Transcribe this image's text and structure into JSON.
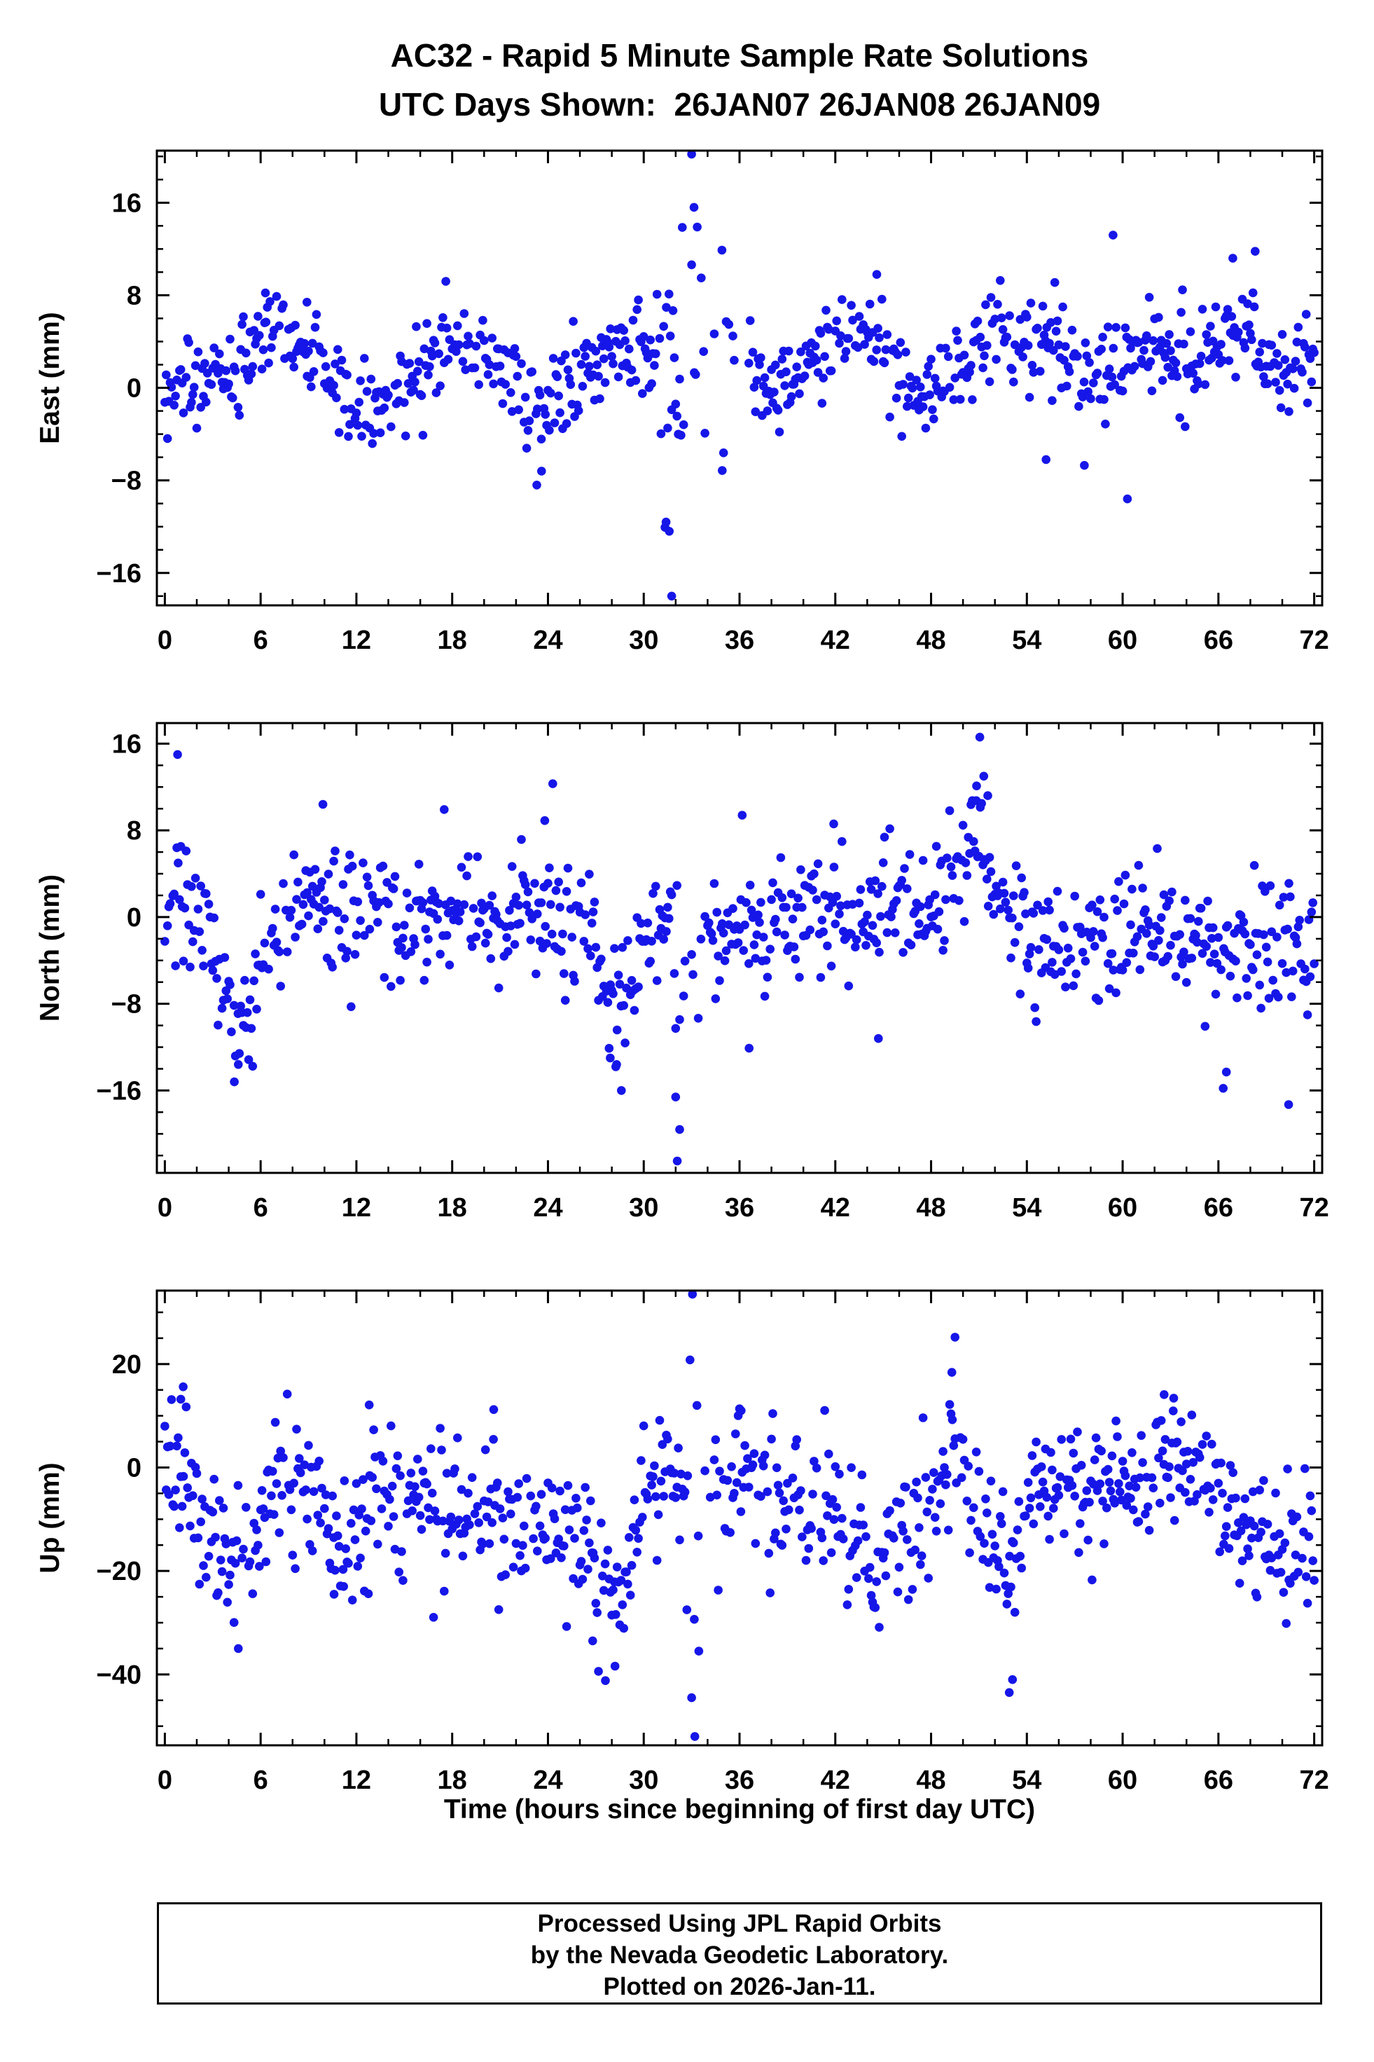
{
  "title": {
    "line1": "AC32 - Rapid 5 Minute Sample Rate Solutions",
    "line2": "UTC Days Shown:  26JAN07 26JAN08 26JAN09"
  },
  "footer": {
    "line1": "Processed Using JPL Rapid Orbits",
    "line2": "by the Nevada Geodetic Laboratory.",
    "line3": "Plotted on 2026-Jan-11."
  },
  "colors": {
    "point": "#1616e8",
    "frame": "#000000",
    "text": "#000000",
    "background": "#ffffff"
  },
  "chart_data": {
    "type": "scatter",
    "title": "AC32 - Rapid 5 Minute Sample Rate Solutions",
    "subtitle": "UTC Days Shown: 26JAN07 26JAN08 26JAN09",
    "sample_interval_hours": 0.0833333,
    "x_axis": {
      "label": "Time (hours since beginning of first day UTC)",
      "lim": [
        -0.5,
        72.5
      ],
      "major_ticks": [
        0,
        6,
        12,
        18,
        24,
        30,
        36,
        42,
        48,
        54,
        60,
        66,
        72
      ],
      "minor_step": 2
    },
    "panels": [
      {
        "name": "east",
        "ylabel": "East (mm)",
        "ylim": [
          -18.8,
          20.5
        ],
        "yticks": [
          -16,
          -8,
          0,
          8,
          16
        ],
        "yminor_step": 2,
        "seed": 20107,
        "noise_std": 1.9,
        "dropout": 0.1,
        "mean_curve": [
          [
            0,
            -0.3
          ],
          [
            2,
            0.2
          ],
          [
            4,
            1.6
          ],
          [
            6,
            3.6
          ],
          [
            7,
            4.4
          ],
          [
            9,
            2.6
          ],
          [
            11,
            0.2
          ],
          [
            12.5,
            -1.2
          ],
          [
            14,
            -1.6
          ],
          [
            15.5,
            0.6
          ],
          [
            17,
            3.2
          ],
          [
            18,
            3.6
          ],
          [
            19.5,
            3.0
          ],
          [
            21,
            1.5
          ],
          [
            22,
            0.2
          ],
          [
            23,
            -2.6
          ],
          [
            24,
            -2.0
          ],
          [
            25,
            0.2
          ],
          [
            26,
            1.6
          ],
          [
            27,
            2.6
          ],
          [
            28.5,
            3.6
          ],
          [
            29.5,
            4.2
          ],
          [
            30.5,
            3.6
          ],
          [
            31.5,
            1.5
          ],
          [
            33,
            3.5
          ],
          [
            34.5,
            4.5
          ],
          [
            36,
            3.0
          ],
          [
            37.5,
            1.0
          ],
          [
            39,
            0.6
          ],
          [
            40.5,
            2.2
          ],
          [
            42,
            5.0
          ],
          [
            43.5,
            5.2
          ],
          [
            45,
            2.8
          ],
          [
            46.5,
            0.2
          ],
          [
            48,
            -1.0
          ],
          [
            49.5,
            1.2
          ],
          [
            51,
            4.2
          ],
          [
            52.5,
            5.0
          ],
          [
            54,
            4.6
          ],
          [
            55.5,
            3.8
          ],
          [
            57,
            1.8
          ],
          [
            58.5,
            0.6
          ],
          [
            60,
            2.0
          ],
          [
            61.5,
            3.8
          ],
          [
            63,
            3.0
          ],
          [
            64.5,
            2.2
          ],
          [
            66,
            4.2
          ],
          [
            67.5,
            5.0
          ],
          [
            69,
            2.6
          ],
          [
            70.5,
            1.2
          ],
          [
            72,
            3.2
          ]
        ],
        "wild_regions": [
          [
            31.0,
            35.5,
            5.5
          ]
        ],
        "sparse_regions": [
          [
            32.5,
            36.5,
            0.72
          ]
        ],
        "outliers": [
          [
            33.0,
            20.2
          ],
          [
            33.15,
            15.6
          ],
          [
            33.35,
            13.9
          ],
          [
            33.6,
            9.5
          ],
          [
            34.9,
            11.9
          ],
          [
            31.4,
            -11.6
          ],
          [
            31.6,
            -12.4
          ],
          [
            31.75,
            -18.0
          ],
          [
            23.3,
            -8.4
          ],
          [
            23.6,
            -7.2
          ],
          [
            59.4,
            13.2
          ],
          [
            66.9,
            11.2
          ],
          [
            68.3,
            11.8
          ],
          [
            17.6,
            9.2
          ],
          [
            6.3,
            8.2
          ],
          [
            60.3,
            -9.6
          ],
          [
            57.6,
            -6.7
          ],
          [
            8.9,
            7.4
          ],
          [
            44.6,
            9.8
          ],
          [
            55.2,
            -6.2
          ]
        ]
      },
      {
        "name": "north",
        "ylabel": "North (mm)",
        "ylim": [
          -23.6,
          17.9
        ],
        "yticks": [
          -16,
          -8,
          0,
          8,
          16
        ],
        "yminor_step": 2,
        "seed": 20108,
        "noise_std": 2.9,
        "dropout": 0.1,
        "mean_curve": [
          [
            0,
            0.8
          ],
          [
            1,
            1.8
          ],
          [
            2,
            1.2
          ],
          [
            3,
            -1.5
          ],
          [
            4,
            -7.0
          ],
          [
            4.8,
            -9.5
          ],
          [
            5.5,
            -8.0
          ],
          [
            6.2,
            -4.0
          ],
          [
            7,
            -1.0
          ],
          [
            8,
            1.4
          ],
          [
            9,
            2.8
          ],
          [
            10,
            2.2
          ],
          [
            11,
            1.0
          ],
          [
            12,
            0.6
          ],
          [
            13,
            1.0
          ],
          [
            14,
            0.4
          ],
          [
            15,
            -0.6
          ],
          [
            16,
            -1.0
          ],
          [
            17,
            0.0
          ],
          [
            18,
            0.6
          ],
          [
            19,
            1.0
          ],
          [
            20,
            0.4
          ],
          [
            21,
            0.0
          ],
          [
            22,
            0.8
          ],
          [
            23,
            1.4
          ],
          [
            24,
            1.0
          ],
          [
            25,
            0.4
          ],
          [
            26,
            -0.2
          ],
          [
            27,
            -2.5
          ],
          [
            27.8,
            -6.5
          ],
          [
            28.5,
            -8.5
          ],
          [
            29.2,
            -5.5
          ],
          [
            30,
            -3.0
          ],
          [
            31,
            -2.0
          ],
          [
            32,
            -4.0
          ],
          [
            33,
            -2.0
          ],
          [
            34,
            -1.0
          ],
          [
            35,
            -1.8
          ],
          [
            36,
            -1.0
          ],
          [
            37,
            0.0
          ],
          [
            38,
            -0.6
          ],
          [
            39,
            -1.0
          ],
          [
            40,
            0.2
          ],
          [
            41,
            0.6
          ],
          [
            42,
            0.0
          ],
          [
            43,
            -1.0
          ],
          [
            44,
            0.4
          ],
          [
            45,
            1.0
          ],
          [
            46,
            0.0
          ],
          [
            47,
            -1.6
          ],
          [
            48,
            0.2
          ],
          [
            49,
            2.0
          ],
          [
            50,
            4.5
          ],
          [
            50.8,
            7.5
          ],
          [
            51.3,
            7.0
          ],
          [
            52,
            3.0
          ],
          [
            53,
            0.0
          ],
          [
            54,
            -1.0
          ],
          [
            55,
            -1.6
          ],
          [
            56,
            -1.0
          ],
          [
            57,
            -2.0
          ],
          [
            58,
            -2.6
          ],
          [
            59,
            -2.0
          ],
          [
            60,
            -1.0
          ],
          [
            61,
            -0.2
          ],
          [
            62,
            -0.8
          ],
          [
            63,
            -1.2
          ],
          [
            64,
            -2.0
          ],
          [
            65,
            -2.2
          ],
          [
            66,
            -3.0
          ],
          [
            67,
            -2.6
          ],
          [
            68,
            -3.0
          ],
          [
            69,
            -2.6
          ],
          [
            70,
            -2.2
          ],
          [
            71,
            -2.6
          ],
          [
            72,
            -2.0
          ]
        ],
        "wild_regions": [
          [
            31.6,
            33.6,
            5.0
          ]
        ],
        "sparse_regions": [
          [
            31.8,
            34.0,
            0.55
          ]
        ],
        "outliers": [
          [
            0.8,
            15.0
          ],
          [
            51.05,
            16.6
          ],
          [
            51.3,
            13.0
          ],
          [
            50.85,
            12.1
          ],
          [
            51.55,
            11.2
          ],
          [
            24.3,
            12.3
          ],
          [
            9.9,
            10.4
          ],
          [
            32.1,
            -22.5
          ],
          [
            32.25,
            -19.6
          ],
          [
            32.0,
            -16.6
          ],
          [
            28.6,
            -16.0
          ],
          [
            28.3,
            -13.6
          ],
          [
            4.35,
            -15.2
          ],
          [
            4.6,
            -13.6
          ],
          [
            27.9,
            -13.0
          ],
          [
            66.3,
            -15.8
          ],
          [
            66.5,
            -14.3
          ],
          [
            70.4,
            -17.3
          ],
          [
            36.6,
            -12.1
          ],
          [
            44.7,
            -11.2
          ],
          [
            23.8,
            8.9
          ],
          [
            41.9,
            8.6
          ]
        ]
      },
      {
        "name": "up",
        "ylabel": "Up (mm)",
        "ylim": [
          -53.7,
          34.2
        ],
        "yticks": [
          -40,
          -20,
          0,
          20
        ],
        "yminor_step": 5,
        "seed": 20109,
        "noise_std": 6.6,
        "dropout": 0.1,
        "mean_curve": [
          [
            0,
            -2
          ],
          [
            0.8,
            0
          ],
          [
            1.5,
            -3
          ],
          [
            2.5,
            -10
          ],
          [
            3.5,
            -15
          ],
          [
            4.5,
            -17
          ],
          [
            5.5,
            -13
          ],
          [
            6.5,
            -7
          ],
          [
            7.5,
            -3
          ],
          [
            8.5,
            -2
          ],
          [
            9.5,
            -6
          ],
          [
            10.5,
            -12
          ],
          [
            11.5,
            -14
          ],
          [
            12.5,
            -8
          ],
          [
            13.5,
            -5
          ],
          [
            14.5,
            -7
          ],
          [
            15.5,
            -8
          ],
          [
            16.5,
            -6.5
          ],
          [
            17.5,
            -6
          ],
          [
            18.5,
            -8.5
          ],
          [
            19.5,
            -10
          ],
          [
            20.5,
            -9
          ],
          [
            21.5,
            -10.5
          ],
          [
            22.5,
            -12
          ],
          [
            23.5,
            -11
          ],
          [
            24.5,
            -13
          ],
          [
            25.5,
            -12.5
          ],
          [
            26.5,
            -15
          ],
          [
            27.5,
            -20
          ],
          [
            28.3,
            -25
          ],
          [
            29,
            -19
          ],
          [
            30,
            -7
          ],
          [
            30.7,
            -1.5
          ],
          [
            31.5,
            -1
          ],
          [
            32.5,
            -3
          ],
          [
            33.5,
            -6
          ],
          [
            34.5,
            -7.5
          ],
          [
            35.5,
            -5.5
          ],
          [
            36.5,
            -4
          ],
          [
            37.5,
            -6
          ],
          [
            38.5,
            -5
          ],
          [
            39.5,
            -7
          ],
          [
            40.5,
            -8.5
          ],
          [
            41.5,
            -9.5
          ],
          [
            42.5,
            -9
          ],
          [
            43.5,
            -15
          ],
          [
            44.4,
            -22
          ],
          [
            45.2,
            -17
          ],
          [
            46,
            -13.5
          ],
          [
            47,
            -11.5
          ],
          [
            48,
            -8
          ],
          [
            49,
            -4
          ],
          [
            49.6,
            -1
          ],
          [
            50.3,
            -3
          ],
          [
            51.2,
            -7
          ],
          [
            52.2,
            -16
          ],
          [
            53,
            -22
          ],
          [
            53.6,
            -16
          ],
          [
            54.4,
            -6
          ],
          [
            55.2,
            -2.5
          ],
          [
            56,
            -3.5
          ],
          [
            57,
            -5
          ],
          [
            58,
            -6
          ],
          [
            59,
            -4
          ],
          [
            60,
            -2.5
          ],
          [
            61,
            -3
          ],
          [
            62,
            -1
          ],
          [
            63,
            0.5
          ],
          [
            63.6,
            1.5
          ],
          [
            64.4,
            0.5
          ],
          [
            65.4,
            -2.5
          ],
          [
            66.4,
            -7
          ],
          [
            67.4,
            -10
          ],
          [
            68.4,
            -12.5
          ],
          [
            69.4,
            -16
          ],
          [
            70.3,
            -19
          ],
          [
            71,
            -14
          ],
          [
            71.6,
            -12
          ],
          [
            72,
            -10.5
          ]
        ],
        "wild_regions": [
          [
            32.6,
            34.2,
            13
          ]
        ],
        "sparse_regions": [
          [
            32.6,
            34.4,
            0.55
          ]
        ],
        "outliers": [
          [
            33.05,
            33.5
          ],
          [
            32.9,
            20.8
          ],
          [
            33.2,
            -52.0
          ],
          [
            33.0,
            -44.5
          ],
          [
            33.45,
            -35.5
          ],
          [
            32.7,
            -27.5
          ],
          [
            49.5,
            25.2
          ],
          [
            49.3,
            18.4
          ],
          [
            1.15,
            15.6
          ],
          [
            1.0,
            13.2
          ],
          [
            27.6,
            -41.2
          ],
          [
            28.2,
            -38.4
          ],
          [
            26.8,
            -33.5
          ],
          [
            4.6,
            -35.0
          ],
          [
            10.6,
            -24.5
          ],
          [
            11.2,
            -23.0
          ],
          [
            52.9,
            -43.5
          ],
          [
            53.1,
            -41.0
          ],
          [
            62.6,
            14.1
          ],
          [
            63.2,
            13.4
          ],
          [
            20.6,
            11.2
          ],
          [
            12.8,
            12.1
          ],
          [
            36.1,
            11.0
          ]
        ]
      }
    ]
  }
}
